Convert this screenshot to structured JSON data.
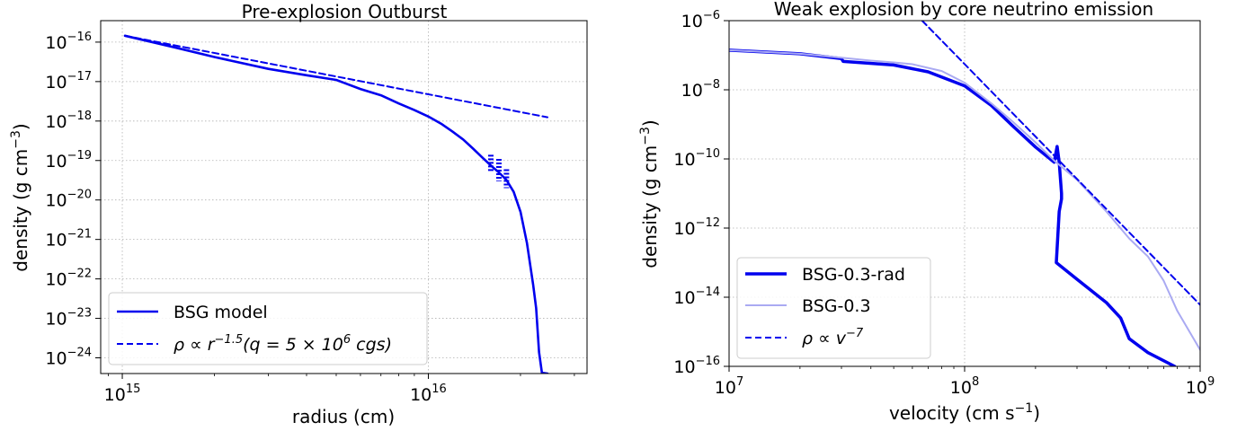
{
  "chart_data": [
    {
      "type": "line",
      "title": "Pre-explosion Outburst",
      "xlabel": "radius (cm)",
      "ylabel": "density (g cm",
      "ylabel_sup": "−3",
      "ylabel_end": ")",
      "xscale": "log",
      "yscale": "log",
      "xlim": [
        850000000000000.0,
        3.3e+16
      ],
      "ylim": [
        4e-25,
        3.5e-16
      ],
      "grid": true,
      "legend_position": "bottom-left",
      "x_ticks": [
        {
          "value": 1000000000000000.0,
          "base": "10",
          "exp": "15"
        },
        {
          "value": 1e+16,
          "base": "10",
          "exp": "16"
        }
      ],
      "y_ticks": [
        {
          "value": 1e-16,
          "base": "10",
          "exp": "−16"
        },
        {
          "value": 1e-17,
          "base": "10",
          "exp": "−17"
        },
        {
          "value": 1e-18,
          "base": "10",
          "exp": "−18"
        },
        {
          "value": 1e-19,
          "base": "10",
          "exp": "−19"
        },
        {
          "value": 1e-20,
          "base": "10",
          "exp": "−20"
        },
        {
          "value": 1e-21,
          "base": "10",
          "exp": "−21"
        },
        {
          "value": 1e-22,
          "base": "10",
          "exp": "−22"
        },
        {
          "value": 1e-23,
          "base": "10",
          "exp": "−23"
        },
        {
          "value": 1e-24,
          "base": "10",
          "exp": "−24"
        }
      ],
      "series": [
        {
          "name": "BSG model",
          "color": "#0000ee",
          "style": "solid",
          "width": 2.6,
          "points": [
            [
              1020000000000000.0,
              1.45e-16
            ],
            [
              1500000000000000.0,
              7.2e-17
            ],
            [
              2000000000000000.0,
              4.2e-17
            ],
            [
              3000000000000000.0,
              2.1e-17
            ],
            [
              4000000000000000.0,
              1.45e-17
            ],
            [
              5000000000000000.0,
              1.1e-17
            ],
            [
              6000000000000000.0,
              6.5e-18
            ],
            [
              7000000000000000.0,
              4.5e-18
            ],
            [
              8000000000000000.0,
              2.8e-18
            ],
            [
              9000000000000000.0,
              1.9e-18
            ],
            [
              1e+16,
              1.3e-18
            ],
            [
              1.1e+16,
              8.6e-19
            ],
            [
              1.2e+16,
              5.4e-19
            ],
            [
              1.3e+16,
              3.4e-19
            ],
            [
              1.4e+16,
              2e-19
            ],
            [
              1.5e+16,
              1.2e-19
            ],
            [
              1.6e+16,
              7.5e-20
            ],
            [
              1.7e+16,
              5e-20
            ],
            [
              1.8e+16,
              3.2e-20
            ],
            [
              1.9e+16,
              1.6e-20
            ],
            [
              2e+16,
              5e-21
            ],
            [
              2.1e+16,
              8e-22
            ],
            [
              2.2e+16,
              7e-23
            ],
            [
              2.25e+16,
              1.8e-23
            ],
            [
              2.3e+16,
              1.4e-24
            ],
            [
              2.35e+16,
              4.2e-25
            ],
            [
              2.45e+16,
              4e-25
            ]
          ]
        },
        {
          "name": "ρ ∝ r^{−1.5} (q = 5 × 10^6 cgs)",
          "legend_parts": [
            "ρ ∝ r",
            "−1.5",
            "(q = 5 × 10",
            "6",
            " cgs)"
          ],
          "color": "#0000ee",
          "style": "dashed",
          "width": 2,
          "points": [
            [
              1020000000000000.0,
              1.45e-16
            ],
            [
              2.45e+16,
              1.25e-18
            ]
          ]
        }
      ]
    },
    {
      "type": "line",
      "title": "Weak explosion by core neutrino emission",
      "xlabel": "velocity (cm s",
      "xlabel_sup": "−1",
      "xlabel_end": ")",
      "ylabel": "density (g cm",
      "ylabel_sup": "−3",
      "ylabel_end": ")",
      "xscale": "log",
      "yscale": "log",
      "xlim": [
        10000000.0,
        1000000000.0
      ],
      "ylim": [
        1e-16,
        1e-06
      ],
      "grid": true,
      "legend_position": "bottom-left",
      "x_ticks": [
        {
          "value": 10000000.0,
          "base": "10",
          "exp": "7"
        },
        {
          "value": 100000000.0,
          "base": "10",
          "exp": "8"
        },
        {
          "value": 1000000000.0,
          "base": "10",
          "exp": "9"
        }
      ],
      "y_ticks": [
        {
          "value": 1e-06,
          "base": "10",
          "exp": "−6"
        },
        {
          "value": 1e-08,
          "base": "10",
          "exp": "−8"
        },
        {
          "value": 1e-10,
          "base": "10",
          "exp": "−10"
        },
        {
          "value": 1e-12,
          "base": "10",
          "exp": "−12"
        },
        {
          "value": 1e-14,
          "base": "10",
          "exp": "−14"
        },
        {
          "value": 1e-16,
          "base": "10",
          "exp": "−16"
        }
      ],
      "series": [
        {
          "name": "BSG-0.3-rad",
          "color": "#0000ee",
          "style": "solid",
          "width": 3.5,
          "points": [
            [
              10000000.0,
              1.4e-07
            ],
            [
              20000000.0,
              1.1e-07
            ],
            [
              30000000.0,
              8e-08
            ],
            [
              30500000.0,
              6.6e-08
            ],
            [
              50000000.0,
              5.2e-08
            ],
            [
              70000000.0,
              3.3e-08
            ],
            [
              100000000.0,
              1.3e-08
            ],
            [
              130000000.0,
              3.5e-09
            ],
            [
              160000000.0,
              9e-10
            ],
            [
              200000000.0,
              2.2e-10
            ],
            [
              240000000.0,
              8e-11
            ],
            [
              247000000.0,
              2.3e-10
            ],
            [
              252000000.0,
              8e-11
            ],
            [
              258000000.0,
              1e-11
            ],
            [
              258000000.0,
              7e-12
            ],
            [
              252000000.0,
              3e-12
            ],
            [
              245000000.0,
              1e-13
            ],
            [
              300000000.0,
              3.3e-14
            ],
            [
              400000000.0,
              7e-15
            ],
            [
              460000000.0,
              2.5e-15
            ],
            [
              500000000.0,
              6.3e-16
            ],
            [
              600000000.0,
              2.5e-16
            ],
            [
              780000000.0,
              1e-16
            ]
          ]
        },
        {
          "name": "BSG-0.3",
          "color": "#aaaaf2",
          "style": "solid",
          "width": 2,
          "points": [
            [
              10000000.0,
              1.4e-07
            ],
            [
              20000000.0,
              1.1e-07
            ],
            [
              30000000.0,
              8.5e-08
            ],
            [
              40000000.0,
              7e-08
            ],
            [
              50000000.0,
              6.2e-08
            ],
            [
              60000000.0,
              5.5e-08
            ],
            [
              80000000.0,
              3.5e-08
            ],
            [
              100000000.0,
              1.6e-08
            ],
            [
              130000000.0,
              4e-09
            ],
            [
              160000000.0,
              1.2e-09
            ],
            [
              200000000.0,
              3e-10
            ],
            [
              240000000.0,
              9e-11
            ],
            [
              300000000.0,
              2.5e-11
            ],
            [
              400000000.0,
              3e-12
            ],
            [
              500000000.0,
              5e-13
            ],
            [
              600000000.0,
              1.5e-13
            ],
            [
              700000000.0,
              3e-14
            ],
            [
              800000000.0,
              4e-15
            ],
            [
              1000000000.0,
              3e-16
            ]
          ]
        },
        {
          "name": "ρ ∝ v^{−7}",
          "legend_parts": [
            "ρ ∝ v",
            "−7"
          ],
          "color": "#0000ee",
          "style": "dashed",
          "width": 2,
          "points": [
            [
              66000000.0,
              1e-06
            ],
            [
              1000000000.0,
              6e-15
            ]
          ]
        }
      ]
    }
  ]
}
